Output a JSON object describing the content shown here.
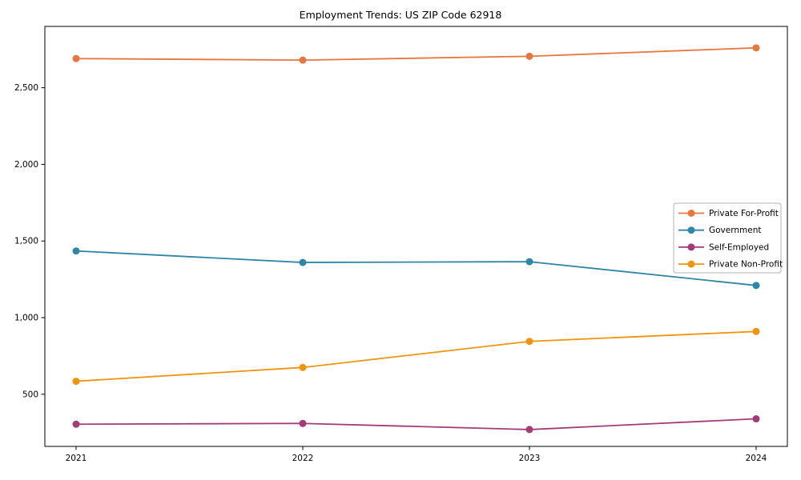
{
  "figure": {
    "background": "#ffffff",
    "spine_color": "#000000",
    "text_color": "#000000"
  },
  "chart_data": {
    "type": "line",
    "title": "Employment Trends: US ZIP Code 62918",
    "x": [
      2021,
      2022,
      2023,
      2024
    ],
    "x_tick_labels": [
      "2021",
      "2022",
      "2023",
      "2024"
    ],
    "series": [
      {
        "name": "Private For-Profit",
        "color": "#e8763f",
        "values": [
          2690,
          2680,
          2705,
          2760
        ]
      },
      {
        "name": "Government",
        "color": "#2f86a8",
        "values": [
          1435,
          1360,
          1365,
          1210
        ]
      },
      {
        "name": "Self-Employed",
        "color": "#a23b78",
        "values": [
          305,
          310,
          270,
          340
        ]
      },
      {
        "name": "Private Non-Profit",
        "color": "#f0940a",
        "values": [
          585,
          675,
          845,
          910
        ]
      }
    ],
    "ylim": [
      160,
      2900
    ],
    "yticks": [
      500,
      1000,
      1500,
      2000,
      2500
    ],
    "ytick_labels": [
      "500",
      "1,000",
      "1,500",
      "2,000",
      "2,500"
    ],
    "grid": false,
    "legend_position": "center right",
    "marker": "circle",
    "line_width": 1.8,
    "marker_radius": 4.5
  }
}
